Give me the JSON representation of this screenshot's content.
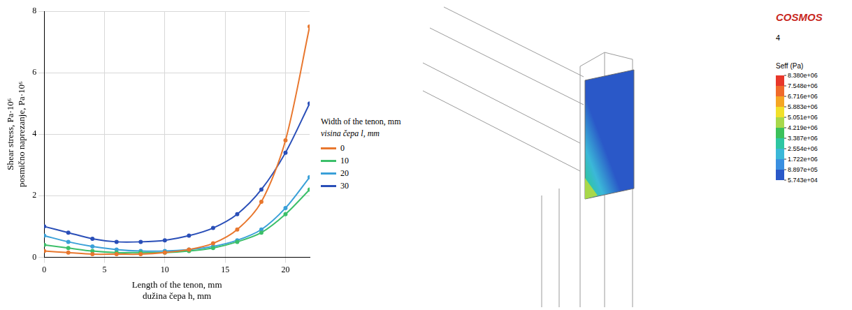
{
  "chart_data": {
    "type": "line",
    "xlabel": [
      "Length of the tenon, mm",
      "dužina čepa h, mm"
    ],
    "ylabel": [
      "Shear stress, Pa·10⁶",
      "posmično naprezanje, Pa·10⁶"
    ],
    "zlabel": [
      "Width of the tenon, mm",
      "visina čepa l, mm"
    ],
    "x": [
      0,
      2,
      4,
      6,
      8,
      10,
      12,
      14,
      16,
      18,
      20,
      22
    ],
    "xlim": [
      0,
      22
    ],
    "xticks": [
      0,
      5,
      10,
      15,
      20
    ],
    "ylim": [
      0,
      8
    ],
    "yticks": [
      0,
      2,
      4,
      6,
      8
    ],
    "grid": true,
    "legend": "right",
    "series": [
      {
        "name": "0",
        "color": "#e8772e",
        "values": [
          0.2,
          0.15,
          0.1,
          0.1,
          0.1,
          0.15,
          0.25,
          0.45,
          0.9,
          1.8,
          3.8,
          7.5
        ]
      },
      {
        "name": "10",
        "color": "#3cbf6a",
        "values": [
          0.4,
          0.3,
          0.2,
          0.15,
          0.15,
          0.15,
          0.2,
          0.3,
          0.5,
          0.8,
          1.4,
          2.2
        ]
      },
      {
        "name": "20",
        "color": "#3aa0d8",
        "values": [
          0.7,
          0.5,
          0.35,
          0.25,
          0.2,
          0.2,
          0.25,
          0.35,
          0.55,
          0.9,
          1.6,
          2.6
        ]
      },
      {
        "name": "30",
        "color": "#2a4fb8",
        "values": [
          1.0,
          0.8,
          0.6,
          0.5,
          0.5,
          0.55,
          0.7,
          0.95,
          1.4,
          2.2,
          3.4,
          5.0
        ]
      }
    ]
  },
  "fea_view": {
    "logo": "COSMOS",
    "step": "4",
    "colorbar": {
      "title": "Seff (Pa)",
      "range": [
        57430,
        8380000
      ],
      "ticks": [
        {
          "value": 8380000,
          "label": "8.380e+06"
        },
        {
          "value": 7548000,
          "label": "7.548e+06"
        },
        {
          "value": 6716000,
          "label": "6.716e+06"
        },
        {
          "value": 5883000,
          "label": "5.883e+06"
        },
        {
          "value": 5051000,
          "label": "5.051e+06"
        },
        {
          "value": 4219000,
          "label": "4.219e+06"
        },
        {
          "value": 3387000,
          "label": "3.387e+06"
        },
        {
          "value": 2554000,
          "label": "2.554e+06"
        },
        {
          "value": 1722000,
          "label": "1.722e+06"
        },
        {
          "value": 889700,
          "label": "8.897e+05"
        },
        {
          "value": 57430,
          "label": "5.743e+04"
        }
      ],
      "colors": [
        "#e8372a",
        "#f06a2a",
        "#f5a623",
        "#f1e02a",
        "#a8d84a",
        "#3cc15a",
        "#2ec6a2",
        "#3bb8d8",
        "#3a8fe0",
        "#2a58c8"
      ]
    }
  }
}
